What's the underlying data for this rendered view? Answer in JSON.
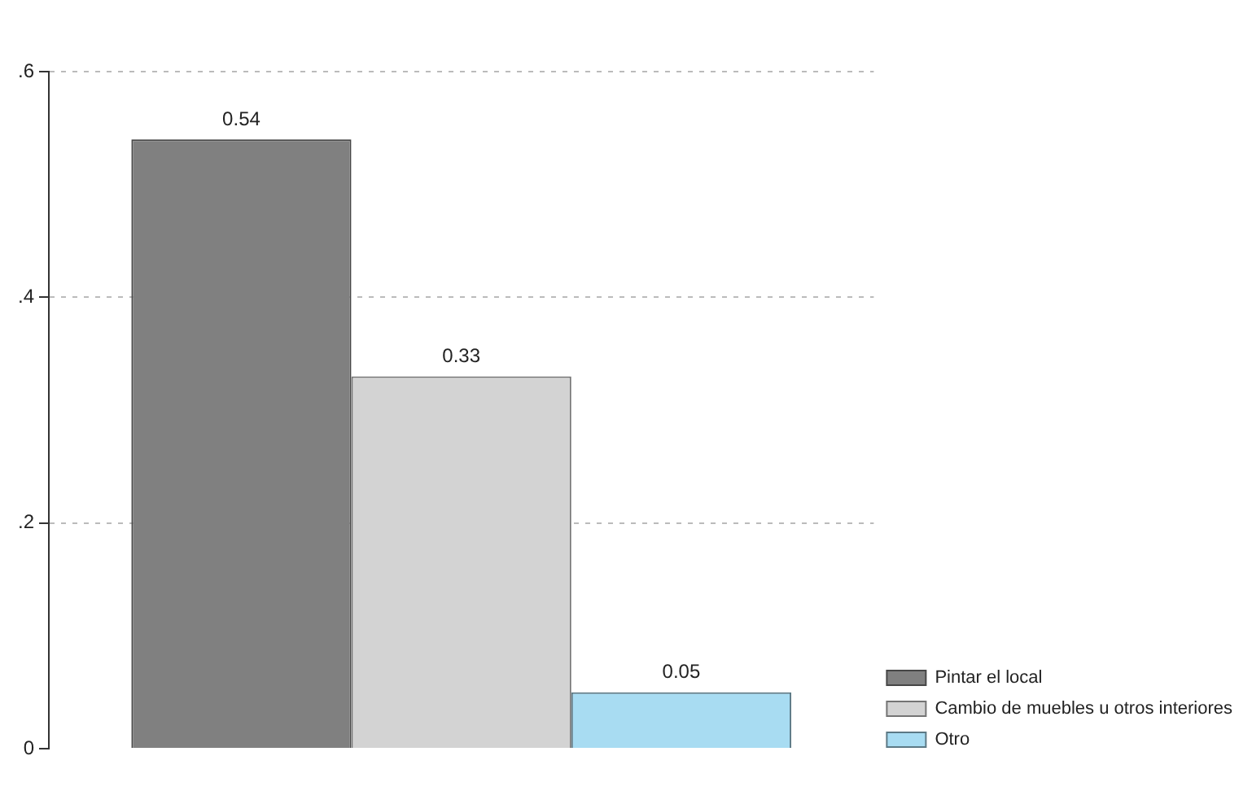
{
  "chart_data": {
    "type": "bar",
    "categories": [
      null
    ],
    "series": [
      {
        "name": "Pintar el local",
        "color": "#808080",
        "values": [
          0.54
        ]
      },
      {
        "name": "Cambio de muebles u otros interiores",
        "color": "#d3d3d3",
        "values": [
          0.33
        ]
      },
      {
        "name": "Otro",
        "color": "#a8dcf2",
        "values": [
          0.05
        ]
      }
    ],
    "ylim": [
      0,
      0.6
    ],
    "yticks": [
      0,
      {
        "value": 0.2,
        "label": ".2"
      },
      {
        "value": 0.4,
        "label": ".4"
      },
      {
        "value": 0.6,
        "label": ".6"
      }
    ],
    "grid": "y",
    "legend": "bottom right",
    "data_labels": true
  }
}
